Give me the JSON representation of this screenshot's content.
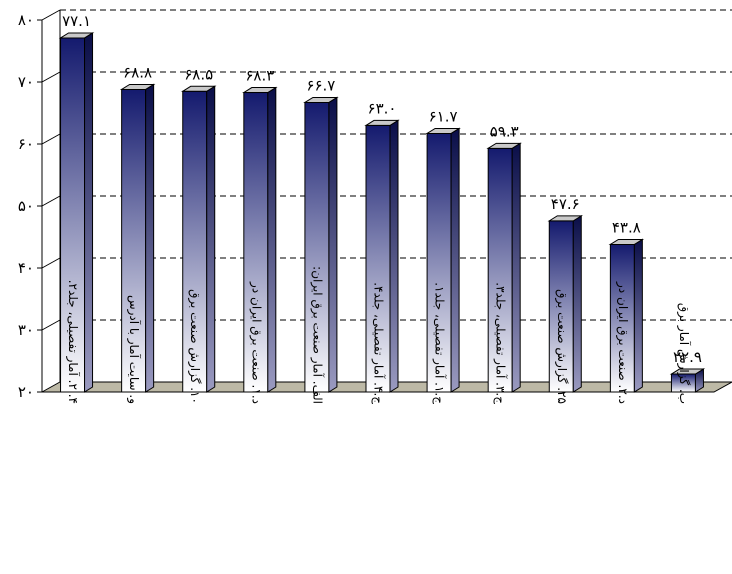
{
  "chart_data": {
    "type": "bar",
    "title": "",
    "xlabel": "",
    "ylabel": "",
    "ylim": [
      20,
      80
    ],
    "y_ticks": [
      20,
      30,
      40,
      50,
      60,
      70,
      80
    ],
    "y_tick_labels": [
      "۲۰",
      "۳۰",
      "۴۰",
      "۵۰",
      "۶۰",
      "۷۰",
      "۸۰"
    ],
    "grid": "horizontal dashed",
    "style": "3d",
    "bar_gradient": [
      "#141a6e",
      "#ffffff"
    ],
    "categories": [
      "۴. ۲. آمار تفصیلی، جلد۲.",
      "و. سایت آمار با آدرس",
      "۱۰. گزارش صنعت برق",
      "د.۱. صنعت برق ایران در",
      "الف. آمار صنعت برق ایران:",
      "ج.۴. آمار تفصیلی، جلد۴.",
      "ج.۱. آمار تفصیلی، جلد۱.",
      "ج.۳. آمار تفصیلی، جلد۳.",
      "۲۵. گزارش صنعت برق",
      "د.۲. صنعت برق ایران در",
      "ب. گزارش آمار برق"
    ],
    "values": [
      77.1,
      68.8,
      68.5,
      68.3,
      66.7,
      63.0,
      61.7,
      59.3,
      47.6,
      43.8,
      22.9
    ],
    "value_labels": [
      "۷۷.۱",
      "۶۸.۸",
      "۶۸.۵",
      "۶۸.۳",
      "۶۶.۷",
      "۶۳.۰",
      "۶۱.۷",
      "۵۹.۳",
      "۴۷.۶",
      "۴۳.۸",
      "۲۲.۹"
    ]
  }
}
